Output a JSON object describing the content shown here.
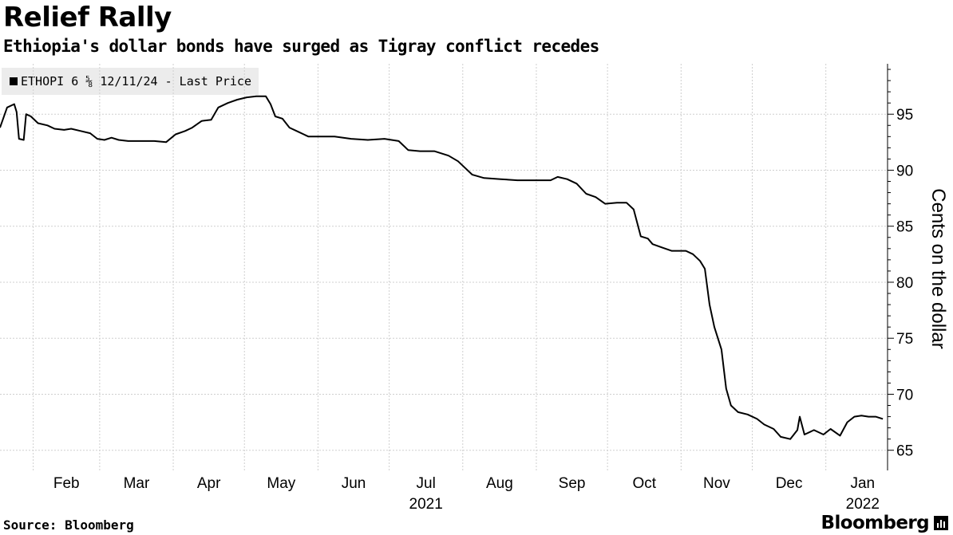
{
  "header": {
    "title": "Relief Rally",
    "subtitle": "Ethiopia's dollar bonds have surged as Tigray conflict recedes"
  },
  "legend": {
    "label": "ETHOPI 6 ⅝ 12/11/24 - Last Price"
  },
  "footer": {
    "source": "Source: Bloomberg",
    "brand": "Bloomberg"
  },
  "colors": {
    "line": "#000000",
    "highlight_fill": "#c6e88f",
    "highlight_stroke": "#8cc63f",
    "grid": "#cfcfcf"
  },
  "chart_data": {
    "type": "line",
    "title": "Relief Rally",
    "subtitle": "Ethiopia's dollar bonds have surged as Tigray conflict recedes",
    "ylabel": "Cents on the dollar",
    "ylim": [
      63.2,
      99.5
    ],
    "yticks": [
      65,
      70,
      75,
      80,
      85,
      90,
      95
    ],
    "y_axis_side": "right",
    "grid": true,
    "legend_position": "top-left",
    "x_tick_dates": [
      "2021-02-01",
      "2021-03-01",
      "2021-04-01",
      "2021-05-01",
      "2021-06-01",
      "2021-07-01",
      "2021-08-01",
      "2021-09-01",
      "2021-10-01",
      "2021-11-01",
      "2021-12-01",
      "2022-01-01"
    ],
    "x_tick_labels": [
      "Feb",
      "Mar",
      "Apr",
      "May",
      "Jun",
      "Jul",
      "Aug",
      "Sep",
      "Oct",
      "Nov",
      "Dec",
      "Jan"
    ],
    "x_year_labels": [
      {
        "date": "2021-07-01",
        "label": "2021"
      },
      {
        "date": "2022-01-01",
        "label": "2022"
      }
    ],
    "xlim": [
      "2021-01-18",
      "2022-01-27"
    ],
    "series": [
      {
        "name": "ETHOPI 6 ⅝ 12/11/24 - Last Price",
        "points": [
          [
            "2021-01-18",
            93.8
          ],
          [
            "2021-01-21",
            95.6
          ],
          [
            "2021-01-24",
            95.9
          ],
          [
            "2021-01-25",
            95.2
          ],
          [
            "2021-01-26",
            92.8
          ],
          [
            "2021-01-28",
            92.7
          ],
          [
            "2021-01-29",
            95.0
          ],
          [
            "2021-01-31",
            94.8
          ],
          [
            "2021-02-03",
            94.2
          ],
          [
            "2021-02-07",
            94.0
          ],
          [
            "2021-02-10",
            93.7
          ],
          [
            "2021-02-14",
            93.6
          ],
          [
            "2021-02-17",
            93.7
          ],
          [
            "2021-02-21",
            93.5
          ],
          [
            "2021-02-25",
            93.3
          ],
          [
            "2021-02-28",
            92.8
          ],
          [
            "2021-03-03",
            92.7
          ],
          [
            "2021-03-06",
            92.9
          ],
          [
            "2021-03-09",
            92.7
          ],
          [
            "2021-03-13",
            92.6
          ],
          [
            "2021-03-18",
            92.6
          ],
          [
            "2021-03-24",
            92.6
          ],
          [
            "2021-03-29",
            92.5
          ],
          [
            "2021-04-02",
            93.2
          ],
          [
            "2021-04-06",
            93.5
          ],
          [
            "2021-04-09",
            93.8
          ],
          [
            "2021-04-13",
            94.4
          ],
          [
            "2021-04-17",
            94.5
          ],
          [
            "2021-04-20",
            95.6
          ],
          [
            "2021-04-24",
            96.0
          ],
          [
            "2021-04-28",
            96.3
          ],
          [
            "2021-05-02",
            96.5
          ],
          [
            "2021-05-06",
            96.6
          ],
          [
            "2021-05-10",
            96.6
          ],
          [
            "2021-05-12",
            95.9
          ],
          [
            "2021-05-14",
            94.8
          ],
          [
            "2021-05-17",
            94.6
          ],
          [
            "2021-05-20",
            93.8
          ],
          [
            "2021-05-24",
            93.4
          ],
          [
            "2021-05-28",
            93.0
          ],
          [
            "2021-06-01",
            93.0
          ],
          [
            "2021-06-08",
            93.0
          ],
          [
            "2021-06-15",
            92.8
          ],
          [
            "2021-06-22",
            92.7
          ],
          [
            "2021-06-29",
            92.8
          ],
          [
            "2021-07-05",
            92.6
          ],
          [
            "2021-07-09",
            91.8
          ],
          [
            "2021-07-14",
            91.7
          ],
          [
            "2021-07-20",
            91.7
          ],
          [
            "2021-07-26",
            91.3
          ],
          [
            "2021-07-30",
            90.8
          ],
          [
            "2021-08-02",
            90.2
          ],
          [
            "2021-08-05",
            89.6
          ],
          [
            "2021-08-10",
            89.3
          ],
          [
            "2021-08-17",
            89.2
          ],
          [
            "2021-08-24",
            89.1
          ],
          [
            "2021-08-31",
            89.1
          ],
          [
            "2021-09-07",
            89.1
          ],
          [
            "2021-09-10",
            89.4
          ],
          [
            "2021-09-14",
            89.2
          ],
          [
            "2021-09-18",
            88.8
          ],
          [
            "2021-09-22",
            87.9
          ],
          [
            "2021-09-26",
            87.6
          ],
          [
            "2021-09-30",
            87.0
          ],
          [
            "2021-10-05",
            87.1
          ],
          [
            "2021-10-09",
            87.1
          ],
          [
            "2021-10-12",
            86.5
          ],
          [
            "2021-10-15",
            84.1
          ],
          [
            "2021-10-18",
            83.9
          ],
          [
            "2021-10-20",
            83.4
          ],
          [
            "2021-10-24",
            83.1
          ],
          [
            "2021-10-28",
            82.8
          ],
          [
            "2021-11-03",
            82.8
          ],
          [
            "2021-11-06",
            82.5
          ],
          [
            "2021-11-09",
            81.9
          ],
          [
            "2021-11-11",
            81.2
          ],
          [
            "2021-11-13",
            78.0
          ],
          [
            "2021-11-15",
            76.0
          ],
          [
            "2021-11-18",
            74.0
          ],
          [
            "2021-11-20",
            70.5
          ],
          [
            "2021-11-22",
            69.0
          ],
          [
            "2021-11-25",
            68.4
          ],
          [
            "2021-11-29",
            68.2
          ],
          [
            "2021-12-03",
            67.8
          ],
          [
            "2021-12-06",
            67.3
          ],
          [
            "2021-12-10",
            66.9
          ],
          [
            "2021-12-13",
            66.2
          ],
          [
            "2021-12-17",
            66.0
          ],
          [
            "2021-12-20",
            66.8
          ],
          [
            "2021-12-21",
            68.0
          ],
          [
            "2021-12-23",
            66.4
          ],
          [
            "2021-12-27",
            66.8
          ],
          [
            "2021-12-31",
            66.4
          ],
          [
            "2022-01-03",
            66.9
          ],
          [
            "2022-01-07",
            66.3
          ],
          [
            "2022-01-10",
            67.5
          ],
          [
            "2022-01-13",
            68.0
          ],
          [
            "2022-01-16",
            68.1
          ],
          [
            "2022-01-19",
            68.0
          ],
          [
            "2022-01-22",
            68.0
          ],
          [
            "2022-01-25",
            67.8
          ]
        ]
      }
    ]
  }
}
